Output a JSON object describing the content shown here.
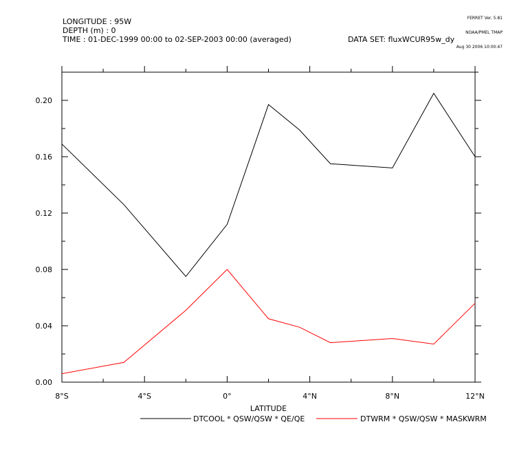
{
  "stamp": {
    "line1": "FERRET Ver. 5.81",
    "line2": "NOAA/PMEL TMAP",
    "line3": "Aug 30 2006 10:00:47"
  },
  "header": {
    "longitude": "LONGITUDE : 95W",
    "depth": "DEPTH (m) : 0",
    "time": "TIME : 01-DEC-1999 00:00 to 02-SEP-2003 00:00 (averaged)",
    "dataset": "DATA SET: fluxWCUR95w_dy"
  },
  "chart_data": {
    "type": "line",
    "xlabel": "LATITUDE",
    "ylabel": "",
    "xlim": [
      -8,
      12
    ],
    "ylim": [
      0,
      0.22
    ],
    "x_ticks": [
      -8,
      -4,
      0,
      4,
      8,
      12
    ],
    "x_tick_labels": [
      "8°S",
      "4°S",
      "0°",
      "4°N",
      "8°N",
      "12°N"
    ],
    "y_ticks": [
      0,
      0.04,
      0.08,
      0.12,
      0.16,
      0.2
    ],
    "y_tick_labels": [
      "0.00",
      "0.04",
      "0.08",
      "0.12",
      "0.16",
      "0.20"
    ],
    "series": [
      {
        "name": "DTCOOL * QSW/QSW * QE/QE",
        "color": "#000000",
        "x": [
          -8,
          -5,
          -2,
          0,
          2,
          3.5,
          5,
          8,
          10,
          12
        ],
        "y": [
          0.169,
          0.126,
          0.075,
          0.112,
          0.197,
          0.179,
          0.155,
          0.152,
          0.205,
          0.16
        ]
      },
      {
        "name": "DTWRM * QSW/QSW * MASKWRM",
        "color": "#ff0000",
        "x": [
          -8,
          -5,
          -2,
          0,
          2,
          3.5,
          5,
          8,
          10,
          12
        ],
        "y": [
          0.006,
          0.014,
          0.051,
          0.08,
          0.045,
          0.039,
          0.028,
          0.031,
          0.027,
          0.056
        ]
      }
    ]
  }
}
